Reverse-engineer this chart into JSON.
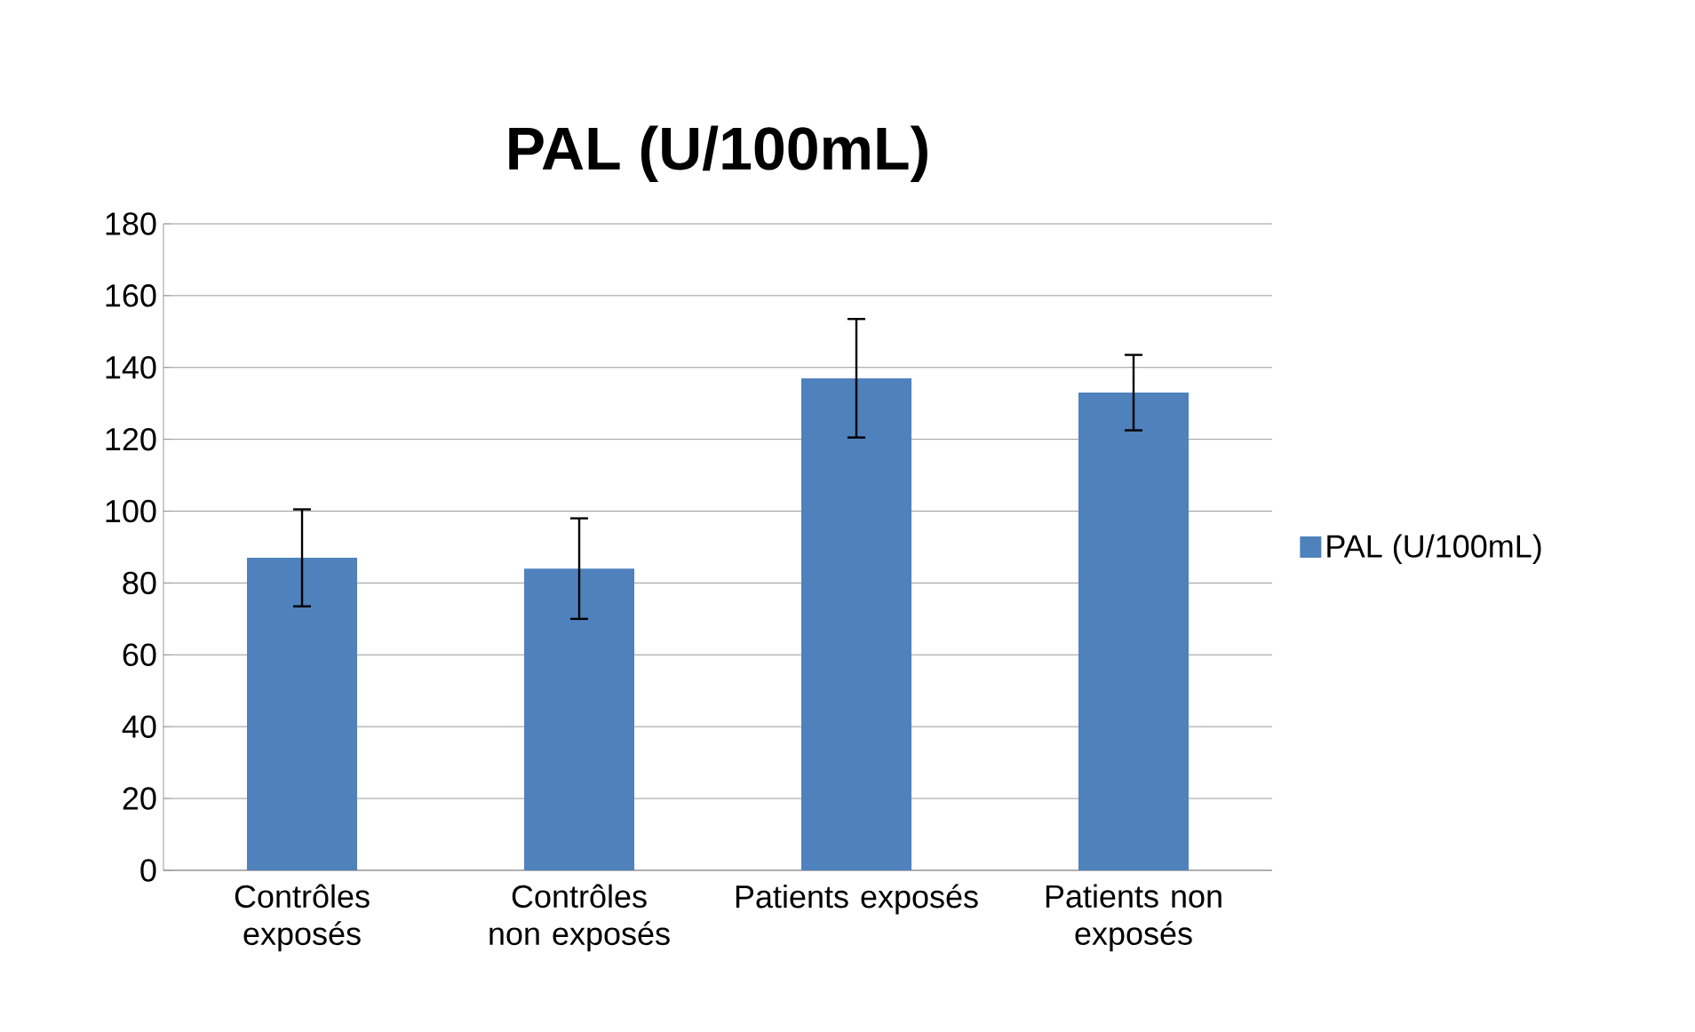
{
  "chart_data": {
    "type": "bar",
    "title": "PAL (U/100mL)",
    "categories": [
      "Contrôles exposés",
      "Contrôles non exposés",
      "Patients exposés",
      "Patients non exposés"
    ],
    "series": [
      {
        "name": "PAL (U/100mL)",
        "color": "#4f81bd",
        "values": [
          87,
          84,
          137,
          133
        ],
        "errors": [
          13.5,
          14,
          16.5,
          10.5
        ]
      }
    ],
    "ylim": [
      0,
      180
    ],
    "yticks": [
      0,
      20,
      40,
      60,
      80,
      100,
      120,
      140,
      160,
      180
    ],
    "grid": "y",
    "legend": "right"
  }
}
